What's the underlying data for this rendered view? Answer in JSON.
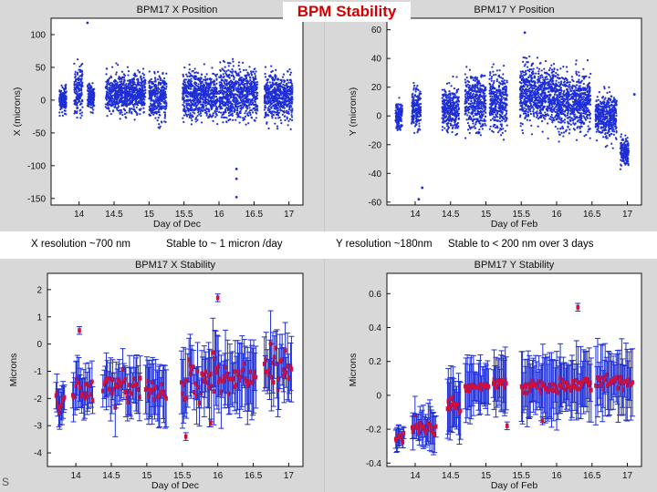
{
  "title": "BPM Stability",
  "notes": {
    "x_res": "X resolution ~700 nm",
    "x_stab": "Stable to ~ 1 micron /day",
    "y_res": "Y resolution ~180nm",
    "y_stab": "Stable to < 200 nm over 3 days"
  },
  "footer": "S",
  "colors": {
    "points": "#1f2fd6",
    "means": "#d0103a",
    "title": "#d40000"
  },
  "chart_data": [
    {
      "type": "scatter",
      "title": "BPM17 X Position",
      "xlabel": "Day of Dec",
      "ylabel": "X (microns)",
      "xlim": [
        13.6,
        17.2
      ],
      "ylim": [
        -160,
        125
      ],
      "xticks": [
        14,
        14.5,
        15,
        15.5,
        16,
        16.5,
        17
      ],
      "yticks": [
        -150,
        -100,
        -50,
        0,
        50,
        100
      ],
      "clusters": [
        {
          "x": [
            13.72,
            13.82
          ],
          "center": 0,
          "spread": 18
        },
        {
          "x": [
            13.93,
            14.05
          ],
          "center": 15,
          "spread": 35
        },
        {
          "x": [
            14.12,
            14.22
          ],
          "center": 5,
          "spread": 20
        },
        {
          "x": [
            14.38,
            14.95
          ],
          "center": 10,
          "spread": 30
        },
        {
          "x": [
            15.0,
            15.25
          ],
          "center": 5,
          "spread": 35
        },
        {
          "x": [
            15.48,
            15.98
          ],
          "center": 8,
          "spread": 35
        },
        {
          "x": [
            16.0,
            16.55
          ],
          "center": 10,
          "spread": 40
        },
        {
          "x": [
            16.65,
            17.05
          ],
          "center": 5,
          "spread": 35
        }
      ],
      "outliers": [
        {
          "x": 14.12,
          "y": 118
        },
        {
          "x": 16.25,
          "y": -148
        },
        {
          "x": 16.25,
          "y": -120
        },
        {
          "x": 16.25,
          "y": -105
        }
      ]
    },
    {
      "type": "scatter",
      "title": "BPM17 Y Position",
      "xlabel": "Day of Feb",
      "ylabel": "Y (microns)",
      "xlim": [
        13.6,
        17.2
      ],
      "ylim": [
        -62,
        68
      ],
      "xticks": [
        14,
        14.5,
        15,
        15.5,
        16,
        16.5,
        17
      ],
      "yticks": [
        -60,
        -40,
        -20,
        0,
        20,
        40,
        60
      ],
      "clusters": [
        {
          "x": [
            13.72,
            13.82
          ],
          "center": 0,
          "spread": 10
        },
        {
          "x": [
            13.95,
            14.08
          ],
          "center": 5,
          "spread": 15
        },
        {
          "x": [
            14.38,
            14.62
          ],
          "center": 5,
          "spread": 15
        },
        {
          "x": [
            14.7,
            15.0
          ],
          "center": 10,
          "spread": 20
        },
        {
          "x": [
            15.05,
            15.3
          ],
          "center": 10,
          "spread": 20
        },
        {
          "x": [
            15.48,
            16.0
          ],
          "center": 15,
          "spread": 20
        },
        {
          "x": [
            16.0,
            16.48
          ],
          "center": 10,
          "spread": 20
        },
        {
          "x": [
            16.55,
            16.85
          ],
          "center": 0,
          "spread": 15
        },
        {
          "x": [
            16.9,
            17.02
          ],
          "center": -25,
          "spread": 10
        }
      ],
      "outliers": [
        {
          "x": 14.1,
          "y": -50
        },
        {
          "x": 14.05,
          "y": -58
        },
        {
          "x": 15.55,
          "y": 58
        },
        {
          "x": 17.1,
          "y": 15
        }
      ]
    },
    {
      "type": "errorbar",
      "title": "BPM17 X Stability",
      "xlabel": "Day of Dec",
      "ylabel": "Microns",
      "xlim": [
        13.6,
        17.2
      ],
      "ylim": [
        -4.6,
        2.5
      ],
      "xticks": [
        14,
        14.5,
        15,
        15.5,
        16,
        16.5,
        17
      ],
      "yticks": [
        -4,
        -3,
        -2,
        -1,
        0,
        1,
        2
      ],
      "y_direction": "down",
      "ticklabels_y": [
        "2",
        "1",
        "0",
        "-1",
        "-2",
        "-3",
        "-4"
      ],
      "groups": [
        {
          "x": [
            13.72,
            13.85
          ],
          "center": 0.0,
          "spread": 0.6,
          "err": 0.6
        },
        {
          "x": [
            13.95,
            14.25
          ],
          "center": -0.2,
          "spread": 0.5,
          "err": 0.8
        },
        {
          "x": [
            14.38,
            14.92
          ],
          "center": -0.4,
          "spread": 0.6,
          "err": 0.9
        },
        {
          "x": [
            14.98,
            15.28
          ],
          "center": -0.3,
          "spread": 0.5,
          "err": 0.9
        },
        {
          "x": [
            15.48,
            16.0
          ],
          "center": -0.7,
          "spread": 0.8,
          "err": 1.1
        },
        {
          "x": [
            16.0,
            16.55
          ],
          "center": -0.8,
          "spread": 0.7,
          "err": 1.1
        },
        {
          "x": [
            16.65,
            17.05
          ],
          "center": -1.0,
          "spread": 0.8,
          "err": 1.0
        }
      ],
      "outliers": [
        {
          "x": 15.55,
          "y": 1.4
        },
        {
          "x": 15.9,
          "y": 0.9
        },
        {
          "x": 16.0,
          "y": -3.7
        },
        {
          "x": 14.05,
          "y": -2.5
        }
      ]
    },
    {
      "type": "errorbar",
      "title": "BPM17 Y Stability",
      "xlabel": "Day of Feb",
      "ylabel": "Microns",
      "xlim": [
        13.6,
        17.2
      ],
      "ylim": [
        -0.42,
        0.72
      ],
      "xticks": [
        14,
        14.5,
        15,
        15.5,
        16,
        16.5,
        17
      ],
      "yticks": [
        -0.4,
        -0.2,
        0,
        0.2,
        0.4,
        0.6
      ],
      "groups": [
        {
          "x": [
            13.72,
            13.85
          ],
          "center": -0.24,
          "spread": 0.04,
          "err": 0.06
        },
        {
          "x": [
            13.95,
            14.3
          ],
          "center": -0.18,
          "spread": 0.06,
          "err": 0.12
        },
        {
          "x": [
            14.45,
            14.65
          ],
          "center": -0.05,
          "spread": 0.05,
          "err": 0.15
        },
        {
          "x": [
            14.7,
            15.05
          ],
          "center": 0.05,
          "spread": 0.03,
          "err": 0.15
        },
        {
          "x": [
            15.1,
            15.3
          ],
          "center": 0.07,
          "spread": 0.03,
          "err": 0.15
        },
        {
          "x": [
            15.5,
            16.0
          ],
          "center": 0.05,
          "spread": 0.04,
          "err": 0.18
        },
        {
          "x": [
            16.0,
            16.5
          ],
          "center": 0.06,
          "spread": 0.04,
          "err": 0.18
        },
        {
          "x": [
            16.55,
            17.08
          ],
          "center": 0.08,
          "spread": 0.05,
          "err": 0.18
        }
      ],
      "outliers": [
        {
          "x": 16.3,
          "y": 0.52
        },
        {
          "x": 15.3,
          "y": -0.18
        },
        {
          "x": 15.8,
          "y": -0.15
        }
      ]
    }
  ]
}
